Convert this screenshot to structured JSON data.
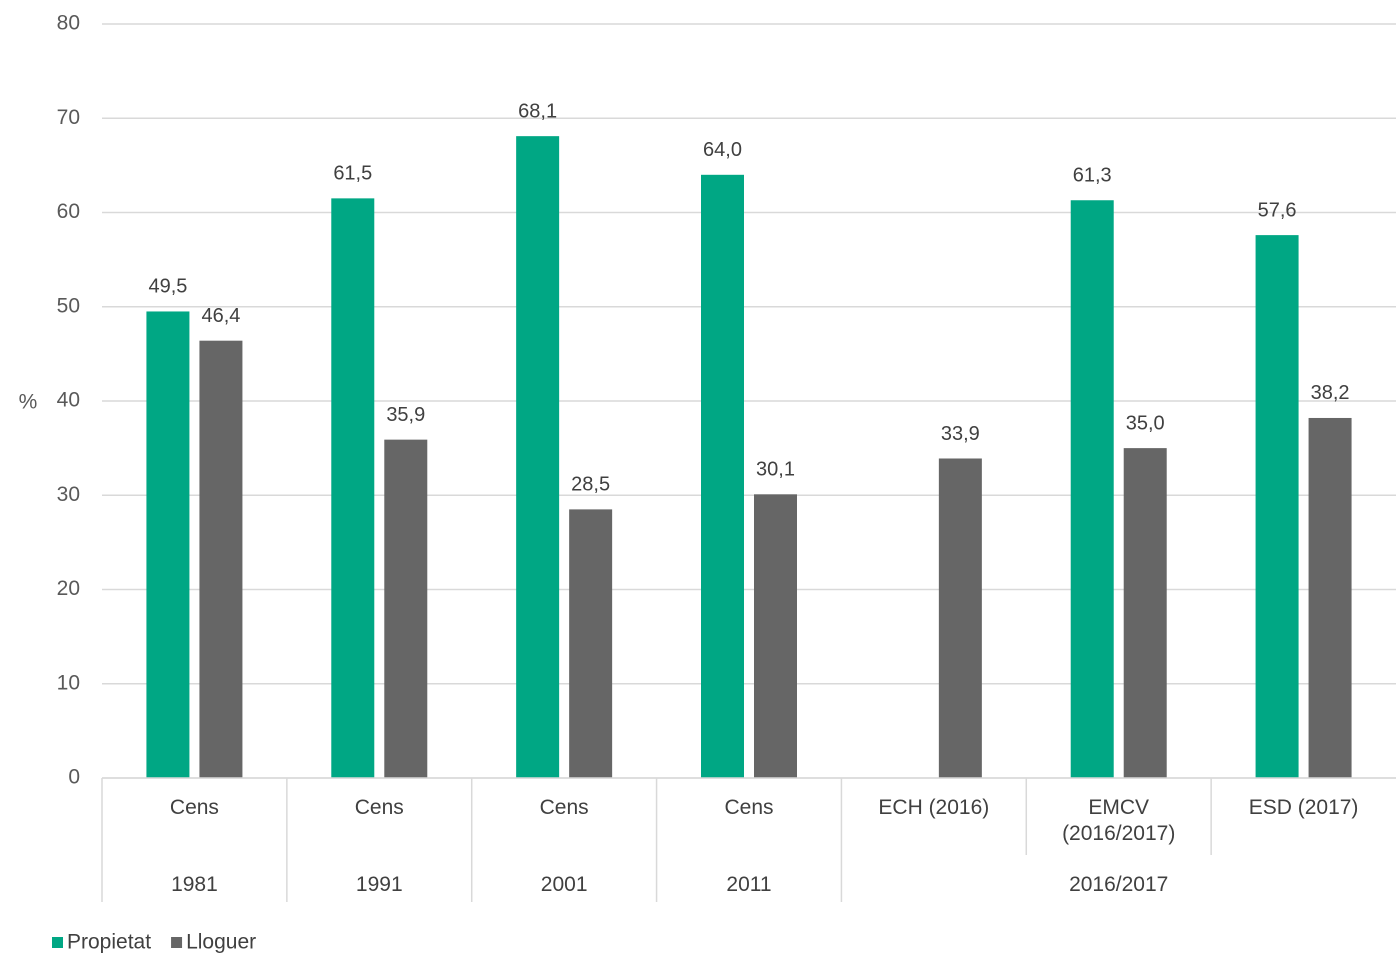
{
  "chart_data": {
    "type": "bar",
    "y_label": "%",
    "categories": [
      "Cens",
      "Cens",
      "Cens",
      "Cens",
      "ECH (2016)",
      "EMCV (2016/2017)",
      "ESD (2017)"
    ],
    "groups": [
      "1981",
      "1991",
      "2001",
      "2011",
      "2016/2017",
      null,
      null
    ],
    "series": [
      {
        "name": "Propietat",
        "color": "#00a784",
        "values": [
          49.5,
          61.5,
          68.1,
          64.0,
          null,
          61.3,
          57.6
        ],
        "value_labels": [
          "49,5",
          "61,5",
          "68,1",
          "64,0",
          null,
          "61,3",
          "57,6"
        ]
      },
      {
        "name": "Lloguer",
        "color": "#666666",
        "values": [
          46.4,
          35.9,
          28.5,
          30.1,
          33.9,
          35.0,
          38.2
        ],
        "value_labels": [
          "46,4",
          "35,9",
          "28,5",
          "30,1",
          "33,9",
          "35,0",
          "38,2"
        ]
      }
    ],
    "ylim": [
      0,
      80
    ],
    "yticks": [
      0,
      10,
      20,
      30,
      40,
      50,
      60,
      70,
      80
    ],
    "grid": true
  }
}
